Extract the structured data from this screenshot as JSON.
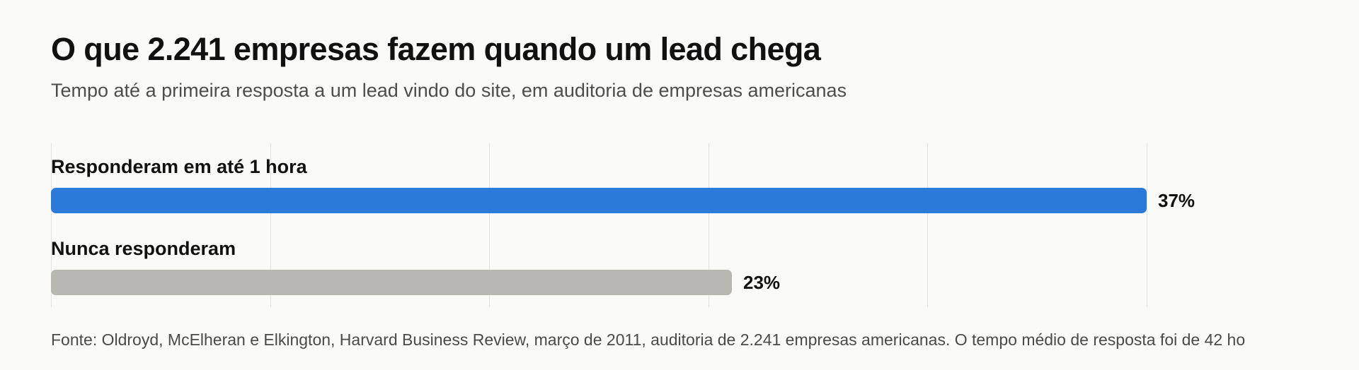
{
  "title": "O que 2.241 empresas fazem quando um lead chega",
  "subtitle": "Tempo até a primeira resposta a um lead vindo do site, em auditoria de empresas americanas",
  "source": "Fonte: Oldroyd, McElheran e Elkington, Harvard Business Review, março de 2011, auditoria de 2.241 empresas americanas. O tempo médio de resposta foi de 42 ho",
  "colors": {
    "primary_bar": "#2b7ad9",
    "secondary_bar": "#b8b7b1",
    "gridline": "#e2e2dd",
    "background": "#fafaf8"
  },
  "chart_data": {
    "type": "bar",
    "orientation": "horizontal",
    "categories": [
      "Responderam em até 1 hora",
      "Nunca responderam"
    ],
    "values": [
      37,
      23
    ],
    "value_labels": [
      "37%",
      "23%"
    ],
    "unit": "%",
    "xlim": [
      0,
      37
    ],
    "grid": "vertical",
    "gridline_values": [
      0,
      7.4,
      14.8,
      22.2,
      29.6,
      37
    ]
  }
}
